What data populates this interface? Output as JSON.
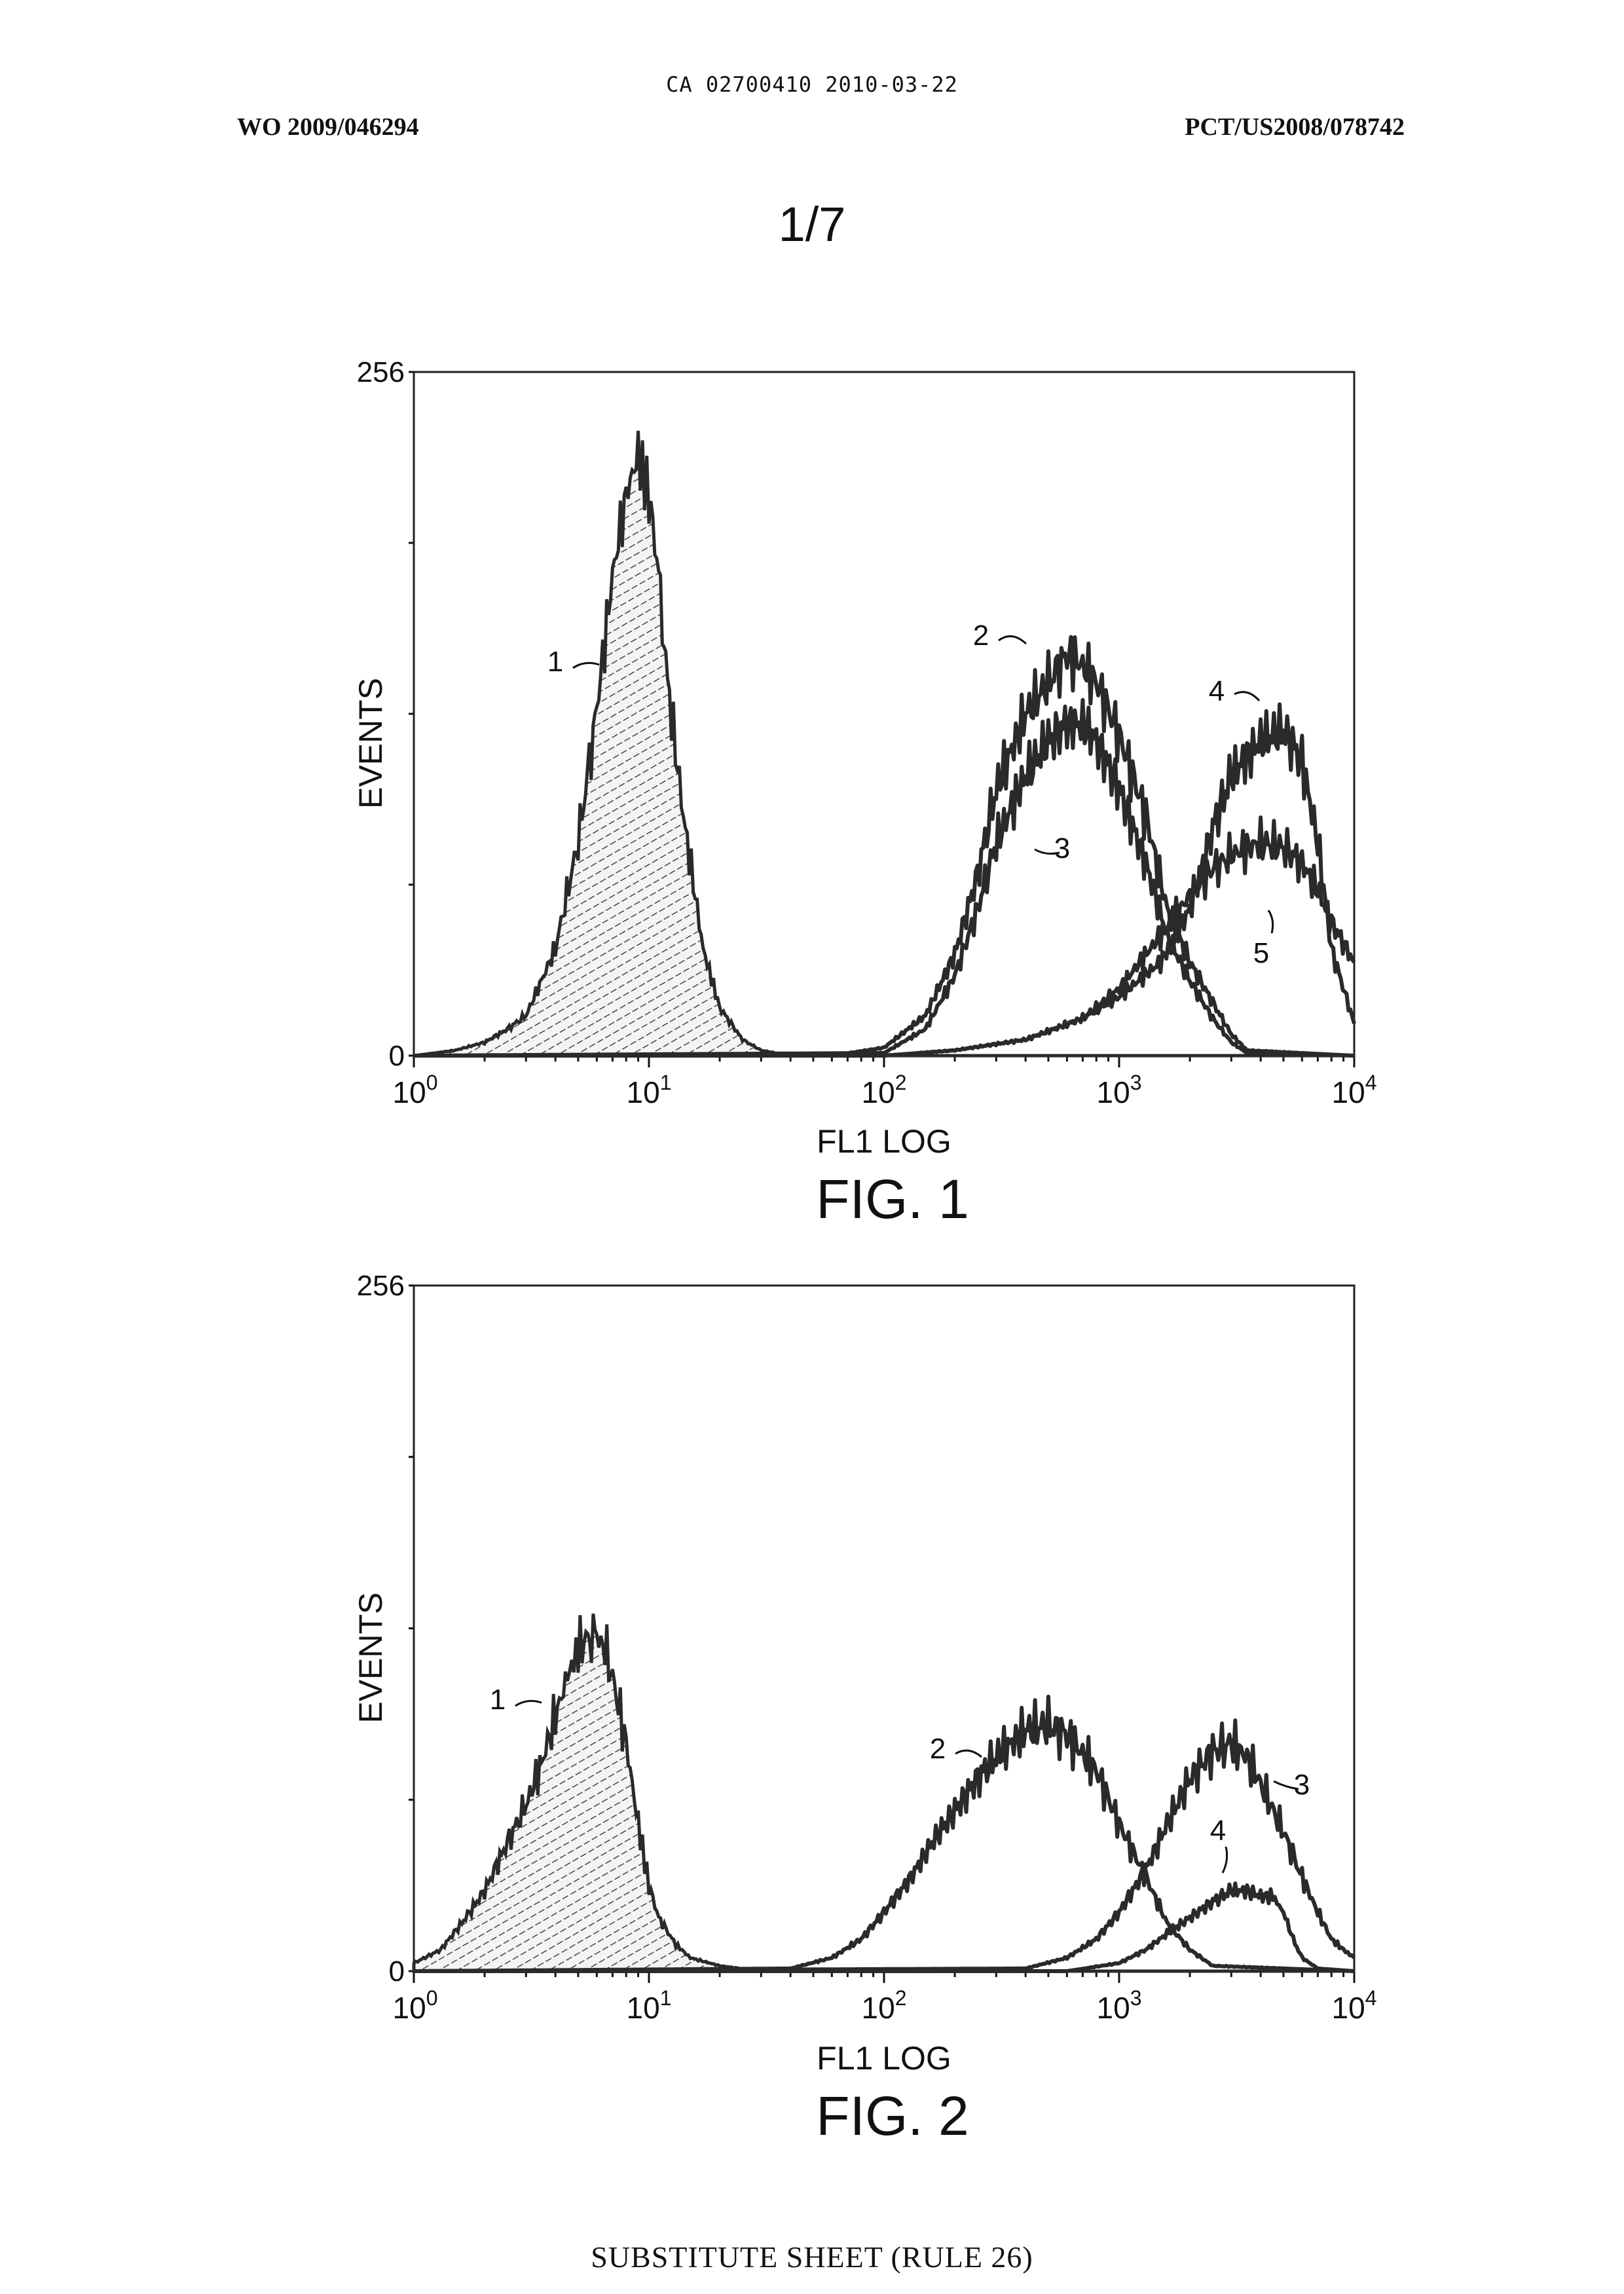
{
  "header": {
    "doc_id": "CA 02700410 2010-03-22",
    "pub_number": "WO 2009/046294",
    "app_number": "PCT/US2008/078742"
  },
  "sheet_number": "1/7",
  "footer": "SUBSTITUTE SHEET (RULE 26)",
  "chart_data": [
    {
      "type": "line",
      "caption": "FIG. 1",
      "xlabel": "FL1 LOG",
      "ylabel": "EVENTS",
      "x_scale": "log",
      "xlim": [
        1,
        10000
      ],
      "ylim": [
        0,
        256
      ],
      "x_tick_labels": [
        {
          "base": "10",
          "exp": "0"
        },
        {
          "base": "10",
          "exp": "1"
        },
        {
          "base": "10",
          "exp": "2"
        },
        {
          "base": "10",
          "exp": "3"
        },
        {
          "base": "10",
          "exp": "4"
        }
      ],
      "y_tick_labels": [
        "0",
        "256"
      ],
      "series": [
        {
          "name": "1",
          "filled": true,
          "pattern": "hatched",
          "x": [
            1,
            1.5,
            2,
            2.5,
            3,
            4,
            5,
            6,
            7,
            8,
            9,
            10,
            11,
            12,
            14,
            17,
            20,
            25,
            30,
            40,
            60,
            100,
            10000
          ],
          "y": [
            0,
            2,
            5,
            10,
            15,
            40,
            80,
            130,
            180,
            210,
            225,
            210,
            180,
            140,
            90,
            40,
            18,
            6,
            2,
            0,
            0,
            0,
            0
          ]
        },
        {
          "name": "2",
          "filled": false,
          "x": [
            1,
            60,
            100,
            150,
            200,
            250,
            300,
            400,
            500,
            600,
            700,
            800,
            1000,
            1300,
            1600,
            2000,
            2500,
            3000,
            3500,
            10000
          ],
          "y": [
            0,
            0,
            3,
            15,
            38,
            68,
            100,
            128,
            140,
            150,
            146,
            140,
            120,
            90,
            55,
            35,
            20,
            8,
            2,
            0
          ]
        },
        {
          "name": "3",
          "filled": false,
          "x": [
            1,
            100,
            150,
            200,
            250,
            300,
            400,
            500,
            600,
            700,
            800,
            1000,
            1300,
            1600,
            2000,
            2500,
            3000,
            3500,
            10000
          ],
          "y": [
            0,
            1,
            10,
            30,
            55,
            80,
            105,
            118,
            124,
            124,
            118,
            100,
            72,
            45,
            28,
            14,
            5,
            1,
            0
          ]
        },
        {
          "name": "4",
          "filled": false,
          "x": [
            1,
            100,
            200,
            400,
            700,
            1000,
            1500,
            2000,
            2500,
            3000,
            4000,
            5000,
            6000,
            7000,
            8000,
            10000
          ],
          "y": [
            0,
            0,
            2,
            6,
            14,
            22,
            35,
            55,
            85,
            105,
            118,
            122,
            110,
            80,
            40,
            12
          ]
        },
        {
          "name": "5",
          "filled": false,
          "x": [
            1,
            100,
            200,
            400,
            700,
            1000,
            1500,
            2000,
            2500,
            3000,
            4000,
            5000,
            6000,
            7000,
            8000,
            10000
          ],
          "y": [
            0,
            0,
            2,
            6,
            14,
            25,
            45,
            60,
            70,
            75,
            80,
            78,
            72,
            62,
            50,
            35
          ]
        }
      ]
    },
    {
      "type": "line",
      "caption": "FIG. 2",
      "xlabel": "FL1 LOG",
      "ylabel": "EVENTS",
      "x_scale": "log",
      "xlim": [
        1,
        10000
      ],
      "ylim": [
        0,
        256
      ],
      "x_tick_labels": [
        {
          "base": "10",
          "exp": "0"
        },
        {
          "base": "10",
          "exp": "1"
        },
        {
          "base": "10",
          "exp": "2"
        },
        {
          "base": "10",
          "exp": "3"
        },
        {
          "base": "10",
          "exp": "4"
        }
      ],
      "y_tick_labels": [
        "0",
        "256"
      ],
      "series": [
        {
          "name": "1",
          "filled": true,
          "pattern": "hatched",
          "x": [
            1,
            1.3,
            1.6,
            2,
            2.5,
            3,
            3.5,
            4,
            4.5,
            5,
            5.5,
            6,
            6.5,
            7,
            8,
            9,
            10,
            11,
            13,
            15,
            20,
            30,
            50,
            10000
          ],
          "y": [
            3,
            8,
            18,
            30,
            48,
            62,
            78,
            95,
            110,
            120,
            125,
            125,
            120,
            110,
            85,
            55,
            32,
            20,
            10,
            5,
            2,
            0,
            0,
            0
          ]
        },
        {
          "name": "2",
          "filled": false,
          "x": [
            1,
            40,
            60,
            80,
            100,
            130,
            160,
            200,
            250,
            300,
            400,
            500,
            600,
            800,
            1000,
            1300,
            1600,
            2000,
            2500,
            10000
          ],
          "y": [
            0,
            1,
            5,
            12,
            22,
            35,
            48,
            60,
            72,
            80,
            90,
            92,
            88,
            75,
            55,
            35,
            18,
            8,
            2,
            0
          ]
        },
        {
          "name": "3",
          "filled": false,
          "x": [
            1,
            400,
            600,
            800,
            1000,
            1300,
            1600,
            2000,
            2500,
            3000,
            3500,
            4000,
            5000,
            6000,
            7000,
            8000,
            9000,
            10000
          ],
          "y": [
            0,
            1,
            5,
            12,
            22,
            38,
            55,
            72,
            82,
            85,
            80,
            70,
            52,
            35,
            22,
            12,
            8,
            5
          ]
        },
        {
          "name": "4",
          "filled": false,
          "x": [
            1,
            600,
            1000,
            1300,
            1600,
            2000,
            2500,
            3000,
            3500,
            4000,
            4500,
            5000,
            5500,
            6000,
            7000,
            10000
          ],
          "y": [
            0,
            0,
            3,
            8,
            14,
            20,
            26,
            30,
            30,
            28,
            28,
            22,
            12,
            5,
            1,
            0
          ]
        }
      ]
    }
  ]
}
